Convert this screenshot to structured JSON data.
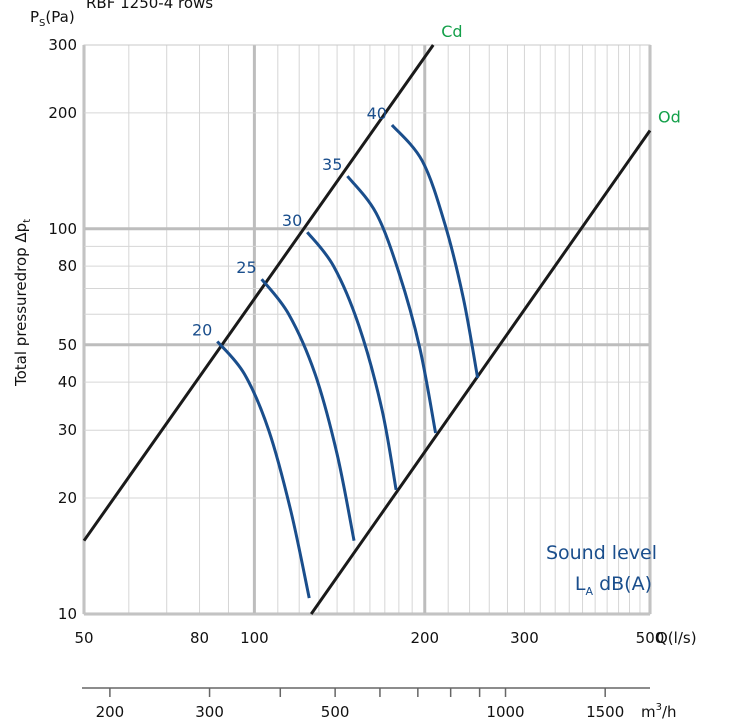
{
  "chart_data": {
    "type": "line",
    "title": "RBF 1250-4 rows",
    "xlabel": "Q(l/s)",
    "x2label": "m",
    "x2label_sup": "3",
    "x2label_suffix": "/h",
    "ylabel_main": "Total pressuredrop Δp",
    "ylabel_sub": "t",
    "y_axis_title": "P",
    "y_axis_title_sub": "S",
    "y_axis_title_suffix": "(Pa)",
    "x_scale": "log",
    "y_scale": "log",
    "xlim": [
      50,
      500
    ],
    "ylim": [
      10,
      300
    ],
    "x_ticks": [
      50,
      80,
      100,
      200,
      300,
      500
    ],
    "x_tick_labels": [
      "50",
      "80",
      "100",
      "200",
      "300",
      "500"
    ],
    "y_ticks": [
      10,
      20,
      30,
      40,
      50,
      80,
      100,
      200,
      300
    ],
    "y_tick_labels": [
      "10",
      "20",
      "30",
      "40",
      "50",
      "80",
      "100",
      "200",
      "300"
    ],
    "x2_ticks": [
      200,
      300,
      500,
      1000,
      1500
    ],
    "x2_tick_labels": [
      "200",
      "300",
      "500",
      "1000",
      "1500"
    ],
    "x2_minor_ticks": [
      400,
      600,
      700,
      800,
      900
    ],
    "grid": true,
    "boundary_lines": [
      {
        "name": "Cd",
        "points": [
          [
            50,
            15.5
          ],
          [
            207,
            300
          ]
        ]
      },
      {
        "name": "Od",
        "points": [
          [
            126,
            10
          ],
          [
            500,
            180
          ]
        ]
      }
    ],
    "sound_curves": [
      {
        "label": "20",
        "points": [
          [
            86,
            51
          ],
          [
            96,
            42
          ],
          [
            106,
            30
          ],
          [
            116,
            18.5
          ],
          [
            125,
            11
          ]
        ]
      },
      {
        "label": "25",
        "points": [
          [
            103,
            74
          ],
          [
            115,
            60
          ],
          [
            128,
            42
          ],
          [
            140,
            26
          ],
          [
            150,
            15.5
          ]
        ]
      },
      {
        "label": "30",
        "points": [
          [
            124,
            98
          ],
          [
            138,
            80
          ],
          [
            153,
            56
          ],
          [
            168,
            34
          ],
          [
            178,
            21
          ]
        ]
      },
      {
        "label": "35",
        "points": [
          [
            146,
            137
          ],
          [
            164,
            110
          ],
          [
            180,
            77
          ],
          [
            196,
            49
          ],
          [
            209,
            29.5
          ]
        ]
      },
      {
        "label": "40",
        "points": [
          [
            175,
            186
          ],
          [
            198,
            150
          ],
          [
            217,
            103
          ],
          [
            234,
            66
          ],
          [
            248,
            41
          ]
        ]
      }
    ],
    "annotation_line1": "Sound level",
    "annotation_line2_main": "L",
    "annotation_line2_sub": "A",
    "annotation_line2_suffix": " dB(A)"
  }
}
